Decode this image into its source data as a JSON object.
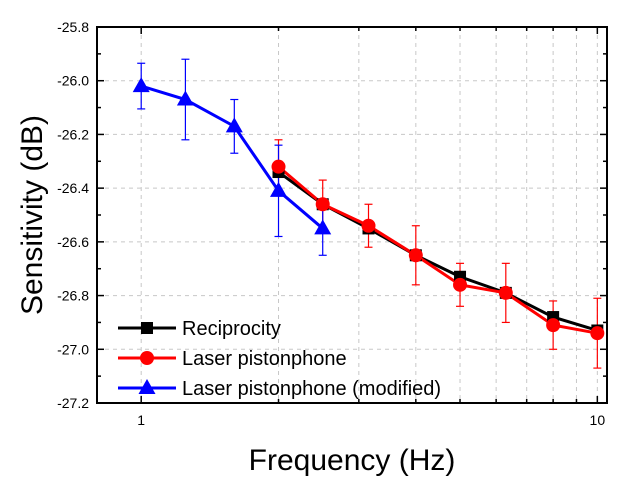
{
  "chart_data": {
    "type": "line",
    "title": "",
    "xlabel": "Frequency (Hz)",
    "ylabel": "Sensitivity (dB)",
    "xscale": "log",
    "xlim": [
      0.8,
      10.5
    ],
    "ylim": [
      -27.2,
      -25.8
    ],
    "x_ticks": [
      1,
      10
    ],
    "x_tick_labels": [
      "1",
      "10"
    ],
    "y_ticks": [
      -25.8,
      -26.0,
      -26.2,
      -26.4,
      -26.6,
      -26.8,
      -27.0,
      -27.2
    ],
    "y_tick_labels": [
      "-25.8",
      "-26.0",
      "-26.2",
      "-26.4",
      "-26.6",
      "-26.8",
      "-27.0",
      "-27.2"
    ],
    "grid": true,
    "legend_position": "bottom-left",
    "series": [
      {
        "name": "Reciprocity",
        "color": "#000000",
        "marker": "square",
        "x": [
          2,
          2.5,
          3.15,
          4,
          5,
          6.3,
          8,
          10
        ],
        "y": [
          -26.34,
          -26.46,
          -26.55,
          -26.65,
          -26.73,
          -26.79,
          -26.88,
          -26.93
        ],
        "err": [
          0.0,
          0.0,
          0.0,
          0.0,
          0.0,
          0.0,
          0.0,
          0.0
        ]
      },
      {
        "name": "Laser pistonphone",
        "color": "#ff0000",
        "marker": "circle",
        "x": [
          2,
          2.5,
          3.15,
          4,
          5,
          6.3,
          8,
          10
        ],
        "y": [
          -26.32,
          -26.46,
          -26.54,
          -26.65,
          -26.76,
          -26.79,
          -26.91,
          -26.94
        ],
        "err": [
          0.1,
          0.09,
          0.08,
          0.11,
          0.08,
          0.11,
          0.09,
          0.13
        ]
      },
      {
        "name": "Laser pistonphone (modified)",
        "color": "#0000ff",
        "marker": "triangle",
        "x": [
          1,
          1.25,
          1.6,
          2,
          2.5
        ],
        "y": [
          -26.02,
          -26.07,
          -26.17,
          -26.41,
          -26.55
        ],
        "err": [
          0.085,
          0.15,
          0.1,
          0.17,
          0.1
        ]
      }
    ]
  }
}
